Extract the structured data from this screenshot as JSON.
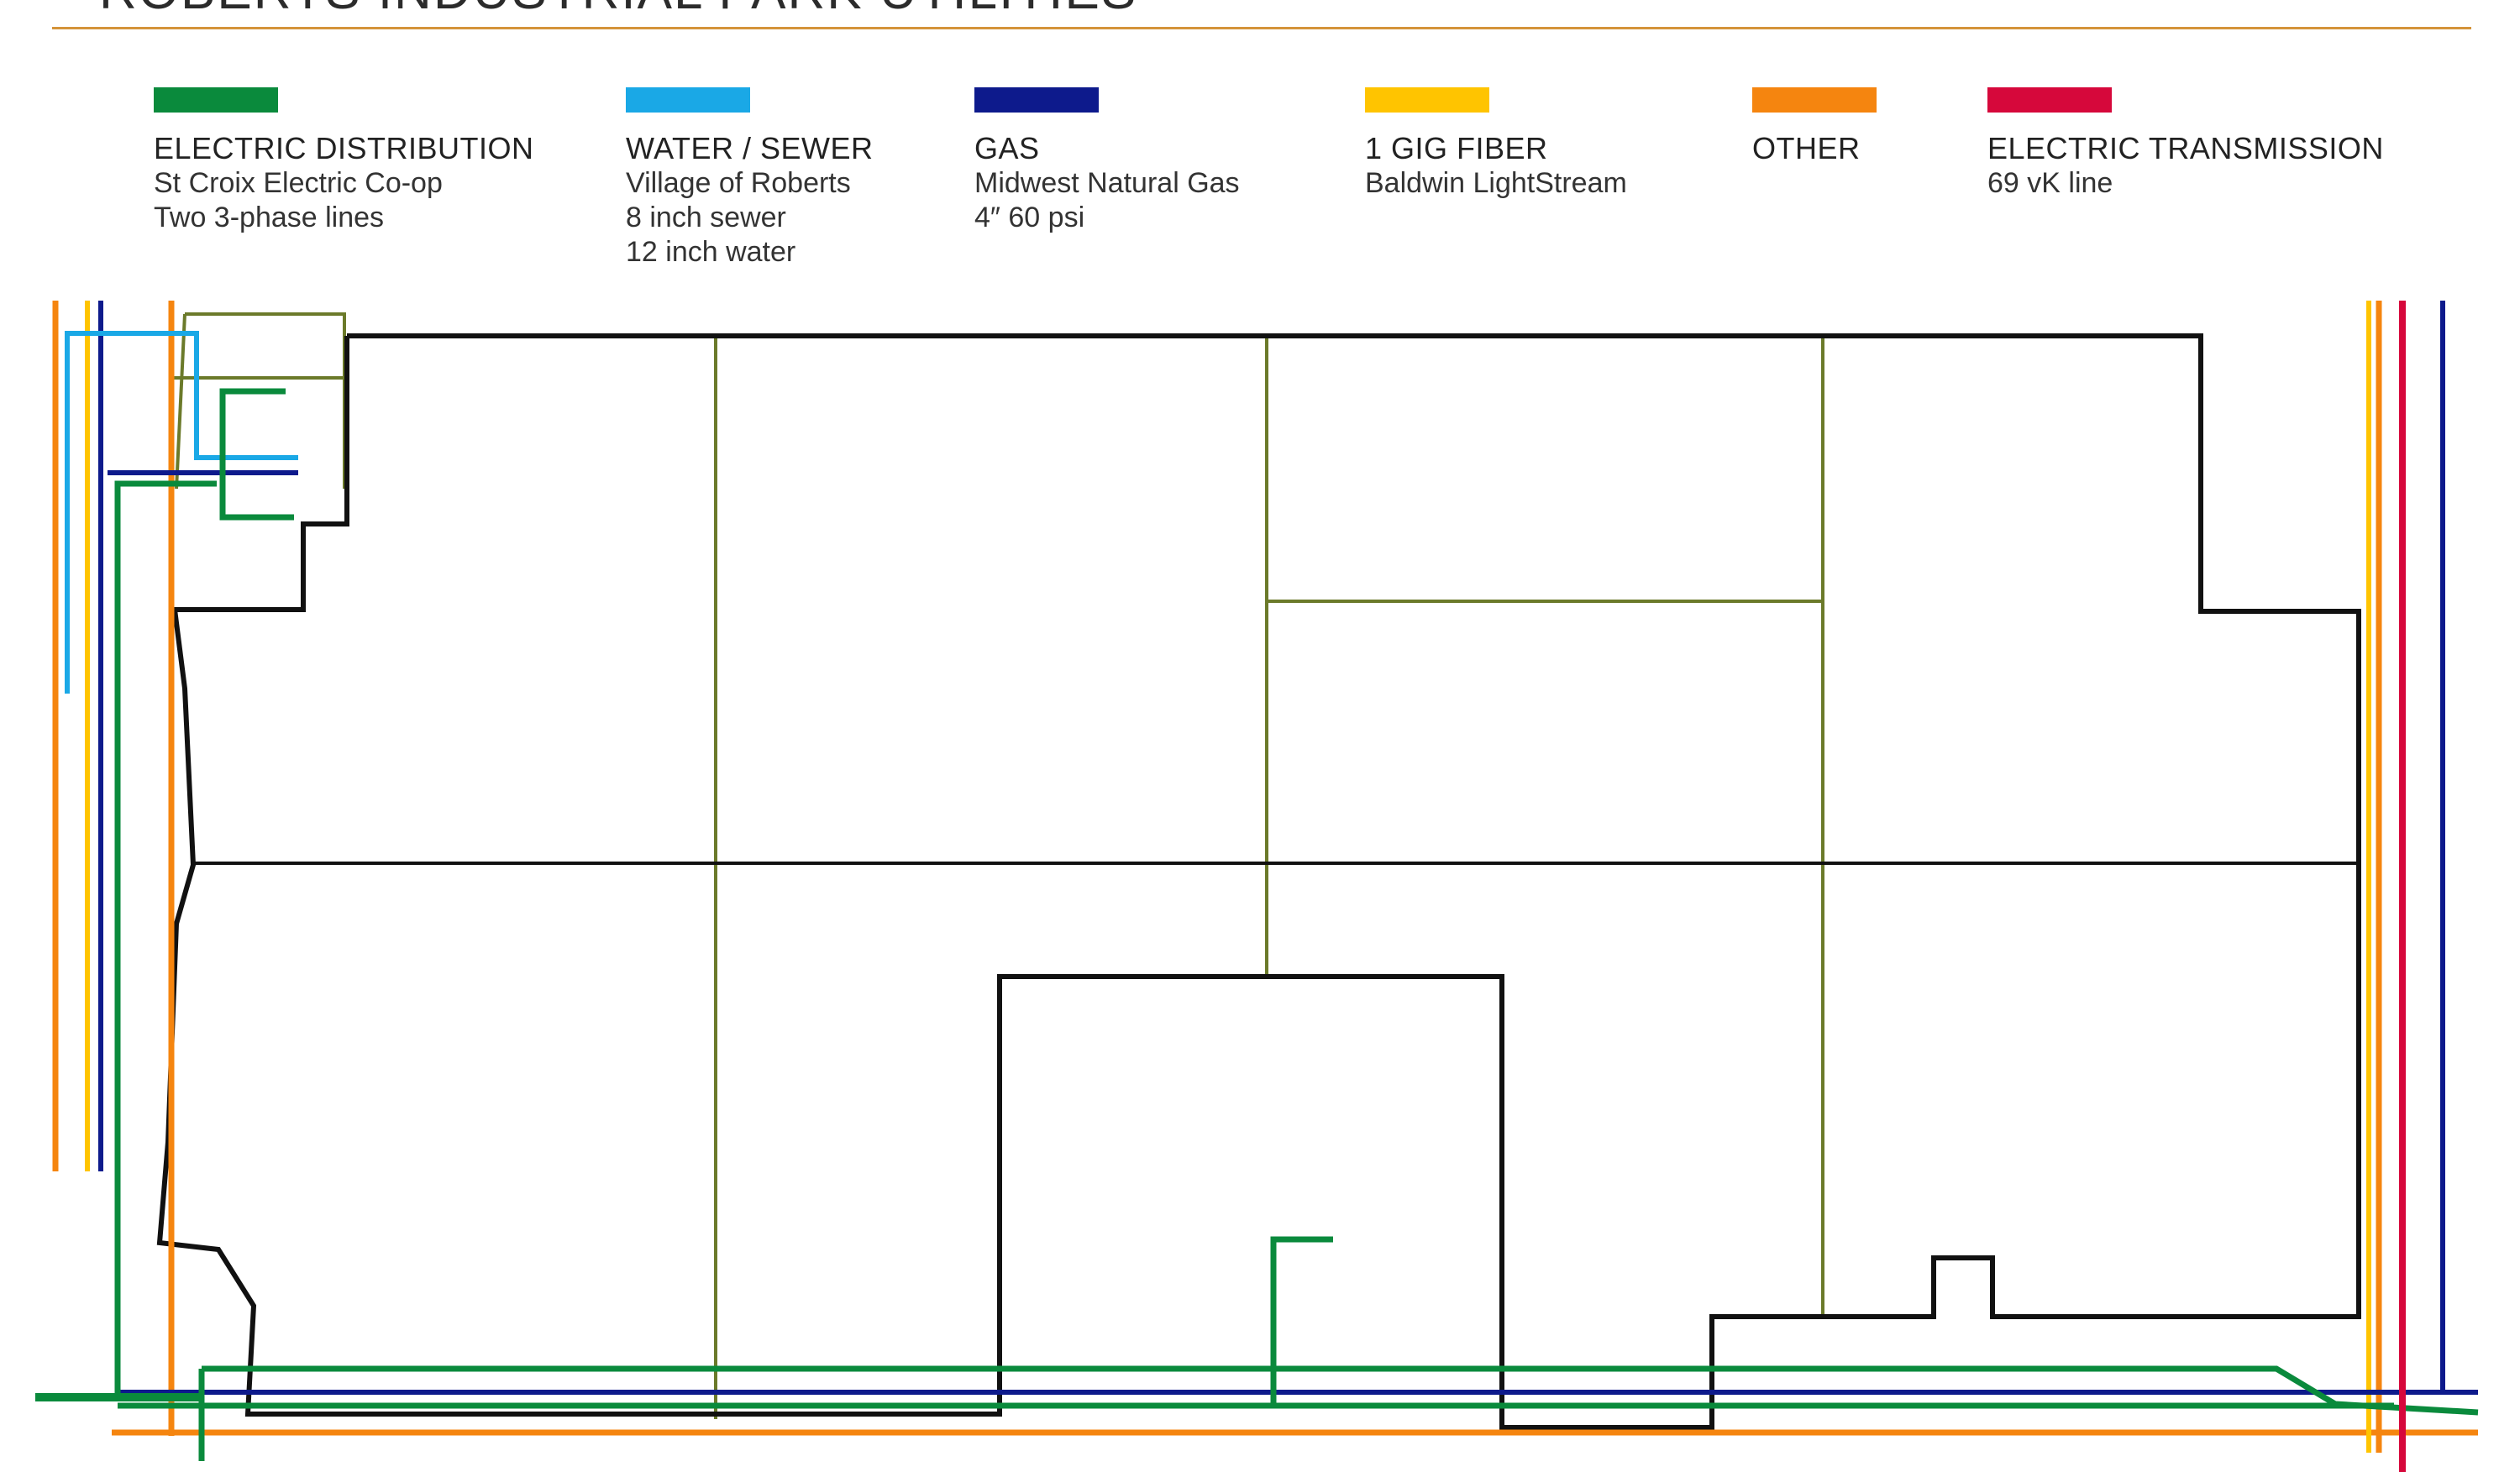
{
  "title": "ROBERTS INDUSTRIAL PARK UTILITIES",
  "legend": [
    {
      "id": "electric",
      "label": "ELECTRIC DISTRIBUTION",
      "lines": [
        "St Croix Electric Co-op",
        "Two 3-phase lines"
      ],
      "color": "#0a8a3c",
      "icon": "green-line-swatch"
    },
    {
      "id": "water",
      "label": "WATER / SEWER",
      "lines": [
        "Village of Roberts",
        "8 inch sewer",
        "12 inch water"
      ],
      "color": "#1aa8e6",
      "icon": "light-blue-line-swatch"
    },
    {
      "id": "gas",
      "label": "GAS",
      "lines": [
        "Midwest Natural Gas",
        "4″ 60 psi"
      ],
      "color": "#0d1a8c",
      "icon": "navy-line-swatch"
    },
    {
      "id": "fiber",
      "label": "1 GIG FIBER",
      "lines": [
        "Baldwin LightStream"
      ],
      "color": "#ffc400",
      "icon": "yellow-line-swatch"
    },
    {
      "id": "other",
      "label": "OTHER",
      "lines": [],
      "color": "#f5850f",
      "icon": "orange-line-swatch"
    },
    {
      "id": "transmission",
      "label": "ELECTRIC TRANSMISSION",
      "lines": [
        "69 vK line"
      ],
      "color": "#d6083b",
      "icon": "red-line-swatch"
    }
  ],
  "colors": {
    "boundary": "#111111",
    "lot_lines": "#6b7a2a",
    "title_rule": "#d4943a"
  }
}
